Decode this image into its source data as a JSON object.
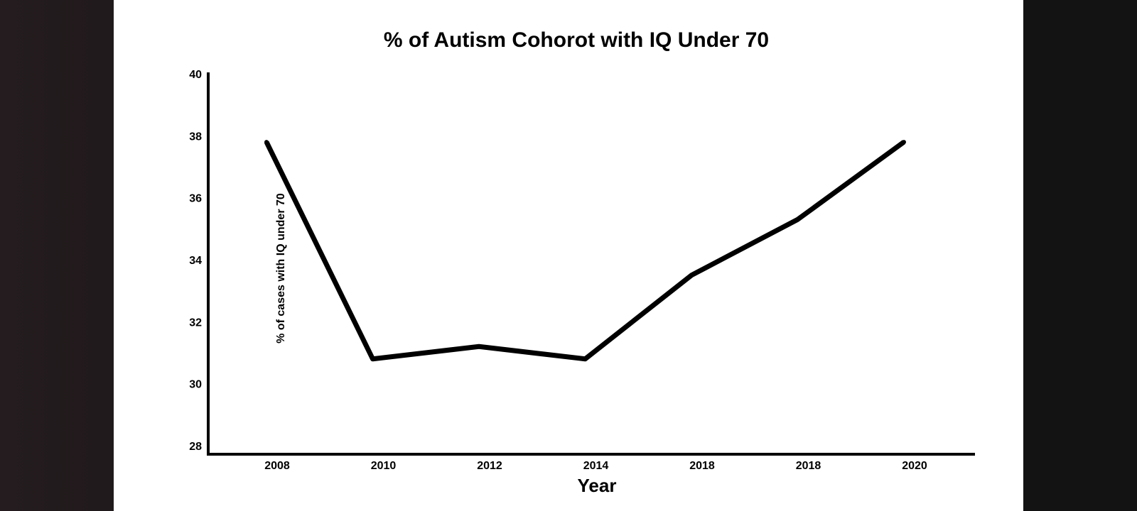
{
  "chart_data": {
    "type": "line",
    "title": "% of Autism Cohorot with IQ Under 70",
    "xlabel": "Year",
    "ylabel": "% of cases with IQ under 70",
    "categories": [
      "2008",
      "2010",
      "2012",
      "2014",
      "2018",
      "2018",
      "2020"
    ],
    "series": [
      {
        "values": [
          37.8,
          30.8,
          31.2,
          30.8,
          33.5,
          35.3,
          37.8
        ]
      }
    ],
    "y_ticks": [
      "28",
      "30",
      "32",
      "34",
      "36",
      "38",
      "40"
    ],
    "ylim": [
      28,
      40
    ],
    "grid": false,
    "legend": "none",
    "colors": {
      "line": "#000000",
      "axis": "#000000",
      "background": "#ffffff"
    }
  }
}
